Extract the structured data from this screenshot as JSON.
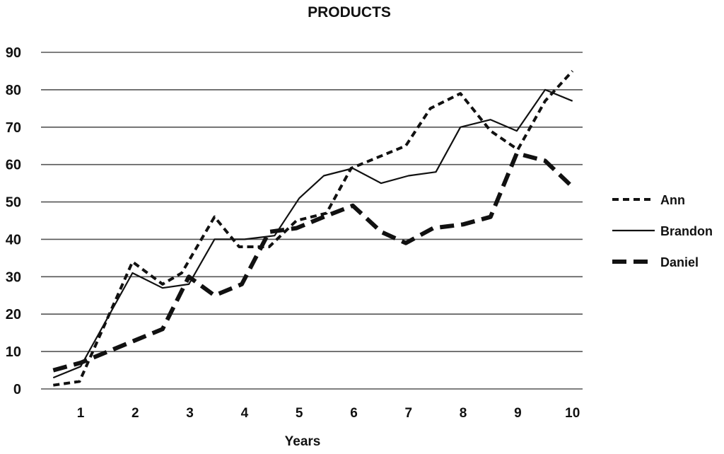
{
  "chart_data": {
    "type": "line",
    "title": "PRODUCTS",
    "xlabel": "Years",
    "ylabel": "",
    "ylim": [
      0,
      90
    ],
    "yticks": [
      0,
      10,
      20,
      30,
      40,
      50,
      60,
      70,
      80,
      90
    ],
    "xlim": [
      0.3,
      10.4
    ],
    "xticks": [
      1,
      2,
      3,
      4,
      5,
      6,
      7,
      8,
      9,
      10
    ],
    "grid": "horizontal",
    "legend": "right",
    "series": [
      {
        "name": "Ann",
        "style": "short-dash",
        "color": "#111111",
        "x": [
          0.5,
          0.98,
          1.95,
          2.5,
          2.85,
          3.45,
          3.9,
          4.45,
          4.95,
          5.5,
          5.95,
          6.95,
          7.4,
          7.95,
          8.5,
          9.0,
          9.5,
          10.0
        ],
        "y": [
          1,
          2,
          34,
          28,
          31,
          46,
          38,
          38,
          45,
          47,
          59,
          65,
          75,
          79,
          69,
          64,
          77,
          85
        ]
      },
      {
        "name": "Brandon",
        "style": "solid",
        "color": "#111111",
        "x": [
          0.5,
          1.0,
          1.95,
          2.5,
          2.98,
          3.45,
          4.0,
          4.55,
          5.0,
          5.45,
          5.98,
          6.5,
          7.0,
          7.5,
          7.95,
          8.5,
          8.98,
          9.5,
          10.0
        ],
        "y": [
          3,
          6,
          31,
          27,
          28,
          40,
          40,
          41,
          51,
          57,
          59,
          55,
          57,
          58,
          70,
          72,
          69,
          80,
          77
        ]
      },
      {
        "name": "Daniel",
        "style": "long-dash",
        "color": "#111111",
        "x": [
          0.5,
          1.0,
          1.5,
          2.0,
          2.5,
          2.98,
          3.45,
          3.95,
          4.45,
          4.95,
          5.45,
          5.98,
          6.5,
          6.95,
          7.45,
          8.0,
          8.5,
          8.98,
          9.5,
          10.0
        ],
        "y": [
          5,
          7,
          10,
          13,
          16,
          30,
          25,
          28,
          42,
          43,
          46,
          49,
          42,
          39,
          43,
          44,
          46,
          63,
          61,
          54
        ]
      }
    ]
  }
}
